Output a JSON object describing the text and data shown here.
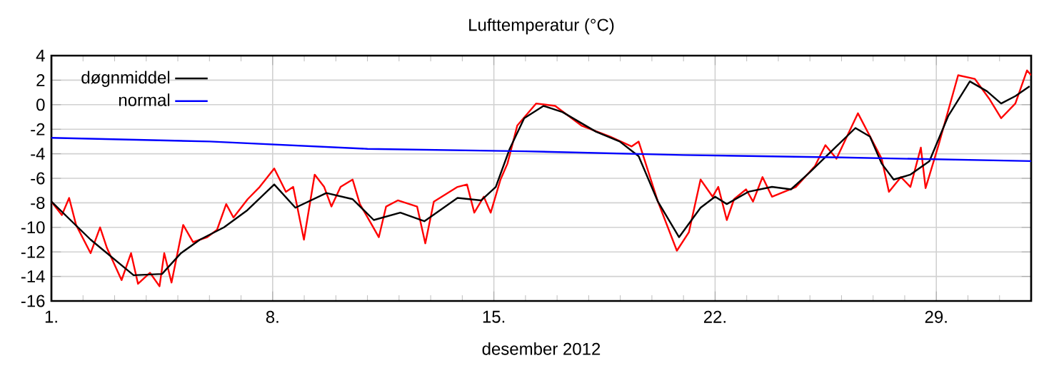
{
  "chart_data": {
    "type": "line",
    "title": "Lufttemperatur (°C)",
    "xlabel": "desember 2012",
    "xlim": [
      1,
      32
    ],
    "ylim": [
      -16,
      4
    ],
    "xticks": [
      {
        "value": 1,
        "label": "1."
      },
      {
        "value": 2,
        "label": null
      },
      {
        "value": 3,
        "label": null
      },
      {
        "value": 4,
        "label": null
      },
      {
        "value": 5,
        "label": null
      },
      {
        "value": 6,
        "label": null
      },
      {
        "value": 7,
        "label": null
      },
      {
        "value": 8,
        "label": "8."
      },
      {
        "value": 9,
        "label": null
      },
      {
        "value": 10,
        "label": null
      },
      {
        "value": 11,
        "label": null
      },
      {
        "value": 12,
        "label": null
      },
      {
        "value": 13,
        "label": null
      },
      {
        "value": 14,
        "label": null
      },
      {
        "value": 15,
        "label": "15."
      },
      {
        "value": 16,
        "label": null
      },
      {
        "value": 17,
        "label": null
      },
      {
        "value": 18,
        "label": null
      },
      {
        "value": 19,
        "label": null
      },
      {
        "value": 20,
        "label": null
      },
      {
        "value": 21,
        "label": null
      },
      {
        "value": 22,
        "label": "22."
      },
      {
        "value": 23,
        "label": null
      },
      {
        "value": 24,
        "label": null
      },
      {
        "value": 25,
        "label": null
      },
      {
        "value": 26,
        "label": null
      },
      {
        "value": 27,
        "label": null
      },
      {
        "value": 28,
        "label": null
      },
      {
        "value": 29,
        "label": "29."
      },
      {
        "value": 30,
        "label": null
      },
      {
        "value": 31,
        "label": null
      }
    ],
    "yticks": [
      -16,
      -14,
      -12,
      -10,
      -8,
      -6,
      -4,
      -2,
      0,
      2,
      4
    ],
    "grid": true,
    "legend": "top left",
    "marker": "none",
    "line_style": "solid",
    "series": [
      {
        "color": "#ff0000",
        "x": [
          1.0,
          1.33,
          1.56,
          1.78,
          2.24,
          2.54,
          2.76,
          3.22,
          3.52,
          3.74,
          4.12,
          4.42,
          4.57,
          4.8,
          5.17,
          5.48,
          5.93,
          6.24,
          6.53,
          6.76,
          7.21,
          7.59,
          8.05,
          8.42,
          8.65,
          8.99,
          9.33,
          9.63,
          9.86,
          10.15,
          10.53,
          10.76,
          11.14,
          11.36,
          11.59,
          11.96,
          12.57,
          12.83,
          13.1,
          13.85,
          14.15,
          14.38,
          14.68,
          14.9,
          15.21,
          15.43,
          15.74,
          16.34,
          16.94,
          17.77,
          18.68,
          19.36,
          19.58,
          20.19,
          20.79,
          21.17,
          21.54,
          21.92,
          22.1,
          22.37,
          22.6,
          22.98,
          23.2,
          23.5,
          23.8,
          24.56,
          25.16,
          25.49,
          25.84,
          26.52,
          27.27,
          27.5,
          27.88,
          28.18,
          28.51,
          28.66,
          29.08,
          29.69,
          30.22,
          30.67,
          31.05,
          31.5,
          31.87,
          32.0
        ],
        "values": [
          -7.9,
          -9.0,
          -7.6,
          -9.8,
          -12.1,
          -10.0,
          -11.7,
          -14.3,
          -12.1,
          -14.6,
          -13.7,
          -14.8,
          -12.1,
          -14.5,
          -9.8,
          -11.2,
          -10.8,
          -10.2,
          -8.1,
          -9.2,
          -7.7,
          -6.7,
          -5.2,
          -7.1,
          -6.7,
          -11.0,
          -5.7,
          -6.7,
          -8.3,
          -6.7,
          -6.1,
          -8.1,
          -9.8,
          -10.8,
          -8.3,
          -7.8,
          -8.3,
          -11.3,
          -7.9,
          -6.7,
          -6.5,
          -8.8,
          -7.5,
          -8.8,
          -6.1,
          -4.8,
          -1.7,
          0.1,
          -0.1,
          -1.7,
          -2.6,
          -3.4,
          -3.0,
          -7.9,
          -11.9,
          -10.4,
          -6.1,
          -7.5,
          -6.7,
          -9.4,
          -7.7,
          -6.9,
          -7.9,
          -5.9,
          -7.5,
          -6.7,
          -5.0,
          -3.3,
          -4.4,
          -0.7,
          -4.4,
          -7.1,
          -5.9,
          -6.7,
          -3.5,
          -6.8,
          -3.2,
          2.4,
          2.1,
          0.5,
          -1.1,
          0.1,
          2.8,
          2.4
        ]
      },
      {
        "name": "døgnmiddel",
        "color": "#000000",
        "x": [
          1.0,
          2.24,
          3.6,
          4.5,
          5.1,
          5.7,
          6.46,
          7.2,
          8.05,
          8.72,
          9.7,
          10.53,
          11.2,
          12.04,
          12.8,
          13.85,
          14.6,
          15.06,
          15.5,
          15.96,
          16.57,
          17.17,
          18.23,
          18.98,
          19.58,
          20.19,
          20.86,
          21.54,
          22.0,
          22.37,
          23.05,
          23.8,
          24.4,
          25.0,
          25.76,
          26.44,
          26.9,
          27.27,
          27.65,
          28.18,
          28.78,
          29.38,
          30.06,
          30.6,
          31.05,
          31.5,
          31.95
        ],
        "values": [
          -7.9,
          -11.0,
          -13.9,
          -13.8,
          -12.1,
          -11.0,
          -10.0,
          -8.6,
          -6.5,
          -8.4,
          -7.2,
          -7.7,
          -9.4,
          -8.8,
          -9.5,
          -7.6,
          -7.8,
          -6.7,
          -3.6,
          -1.1,
          -0.1,
          -0.6,
          -2.2,
          -3.0,
          -4.2,
          -7.9,
          -10.8,
          -8.4,
          -7.5,
          -8.1,
          -7.1,
          -6.7,
          -6.9,
          -5.5,
          -3.6,
          -1.9,
          -2.6,
          -4.8,
          -6.1,
          -5.7,
          -4.6,
          -0.9,
          1.9,
          1.1,
          0.1,
          0.7,
          1.5
        ]
      },
      {
        "name": "normal",
        "color": "#0000ff",
        "x": [
          1,
          6,
          11,
          16,
          21,
          26,
          32
        ],
        "values": [
          -2.7,
          -3.0,
          -3.6,
          -3.8,
          -4.1,
          -4.3,
          -4.6
        ]
      }
    ]
  }
}
